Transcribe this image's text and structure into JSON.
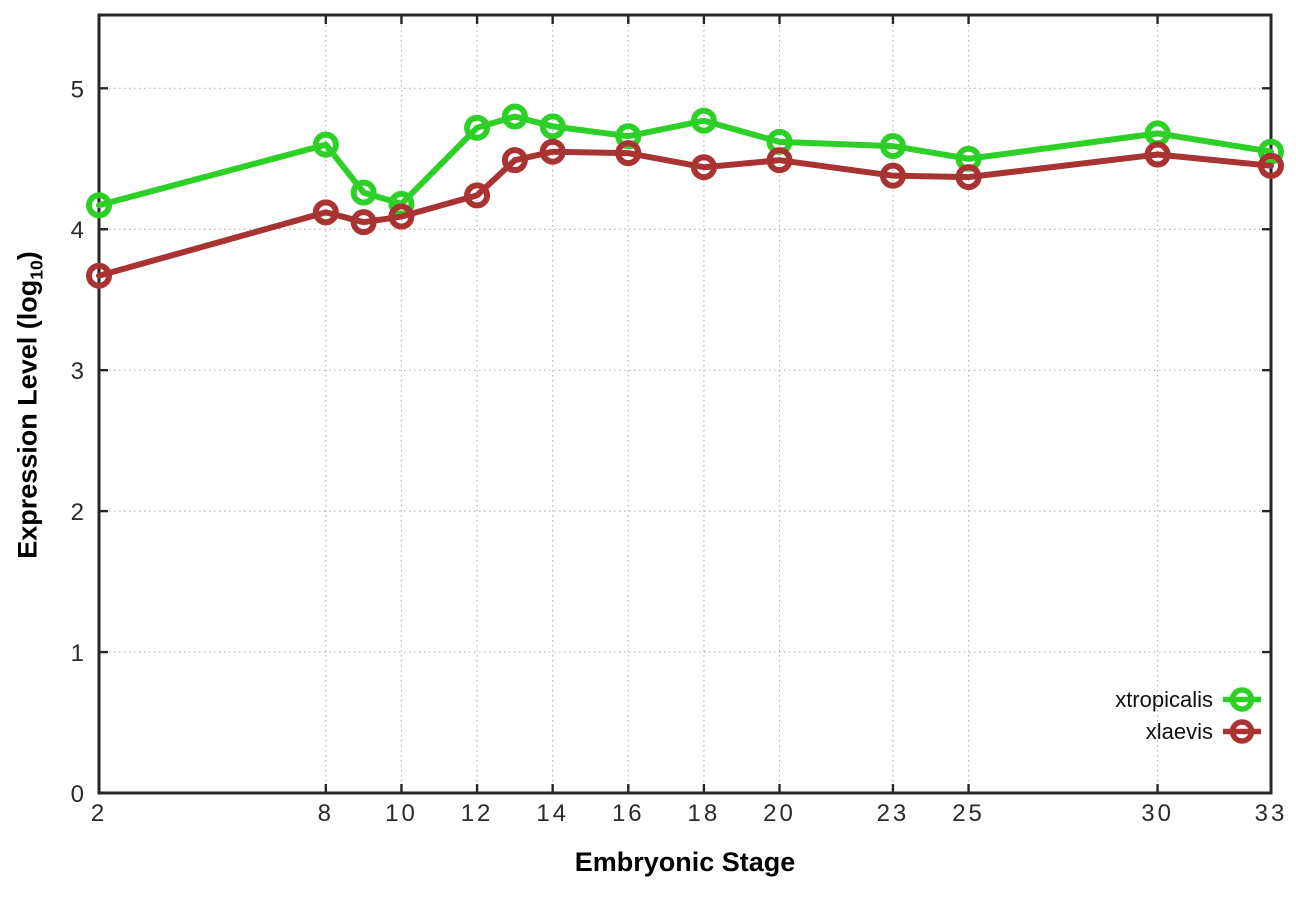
{
  "chart_data": {
    "type": "line",
    "title": "",
    "xlabel": "Embryonic Stage",
    "ylabel_main": "Expression Level (log",
    "ylabel_sub": "10",
    "ylabel_close": ")",
    "x": [
      2,
      8,
      9,
      10,
      12,
      13,
      14,
      16,
      18,
      20,
      23,
      25,
      30,
      33
    ],
    "series": [
      {
        "name": "xtropicalis",
        "color": "#2dd026",
        "marker": "open-circle",
        "values": [
          4.17,
          4.6,
          4.26,
          4.18,
          4.72,
          4.8,
          4.73,
          4.66,
          4.77,
          4.62,
          4.59,
          4.5,
          4.68,
          4.55
        ]
      },
      {
        "name": "xlaevis",
        "color": "#a93333",
        "marker": "open-circle",
        "values": [
          3.67,
          4.12,
          4.05,
          4.09,
          4.24,
          4.49,
          4.55,
          4.54,
          4.44,
          4.49,
          4.38,
          4.37,
          4.53,
          4.45
        ]
      }
    ],
    "xticks": [
      2,
      8,
      10,
      12,
      14,
      16,
      18,
      20,
      23,
      25,
      30,
      33
    ],
    "yticks": [
      0,
      1,
      2,
      3,
      4,
      5
    ],
    "xlim": [
      2,
      33
    ],
    "ylim": [
      0,
      5.52
    ],
    "grid": true,
    "legend_position": "inside-bottom-right",
    "colors": {
      "background": "#ffffff",
      "axis": "#262626",
      "grid": "#b5b5b5",
      "tick_label": "#2a2a2a"
    }
  }
}
